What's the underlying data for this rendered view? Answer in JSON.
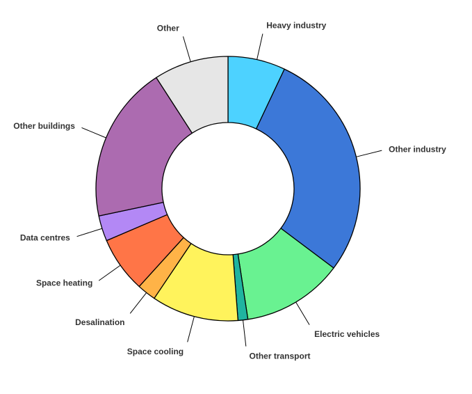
{
  "chart_data": {
    "type": "pie",
    "donut": true,
    "categories": [
      "Heavy industry",
      "Other industry",
      "Electric vehicles",
      "Other transport",
      "Space cooling",
      "Desalination",
      "Space heating",
      "Data centres",
      "Other buildings",
      "Other"
    ],
    "values": [
      7.0,
      28.1,
      12.3,
      1.2,
      10.6,
      2.3,
      6.8,
      3.1,
      19.1,
      9.1
    ],
    "colors": [
      "#4dd2ff",
      "#3c78d8",
      "#69f291",
      "#20b4a0",
      "#fff35c",
      "#ffb347",
      "#ff7547",
      "#b388f5",
      "#ac6bb0",
      "#e6e6e6"
    ],
    "start_angle": "12 o'clock",
    "direction": "clockwise",
    "legend": "none",
    "labels_position": "outside with leader lines"
  }
}
